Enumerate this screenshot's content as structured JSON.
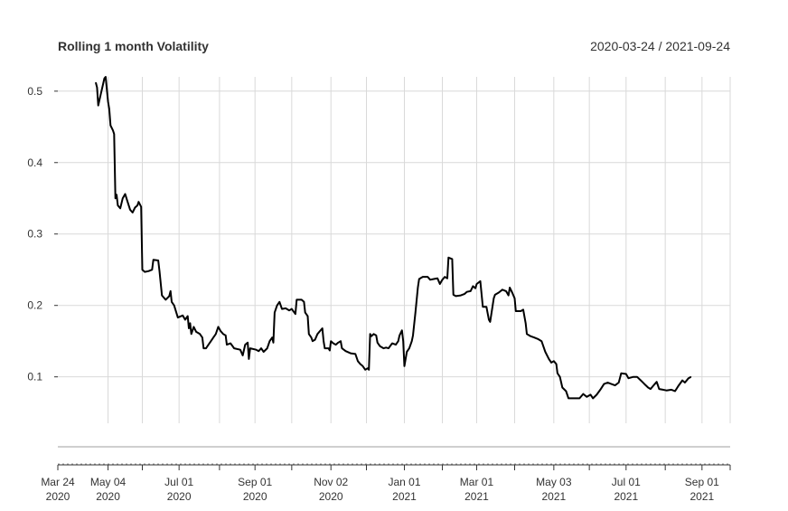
{
  "chart_data": {
    "type": "line",
    "title": "Rolling 1 month Volatility",
    "date_range_label": "2020-03-24 / 2021-09-24",
    "xlabel": "",
    "ylabel": "",
    "ylim": [
      0.035,
      0.52
    ],
    "xlim": [
      "2020-03-24",
      "2021-09-24"
    ],
    "yticks": [
      0.1,
      0.2,
      0.3,
      0.4,
      0.5
    ],
    "ytick_labels": [
      "0.1",
      "0.2",
      "0.3",
      "0.4",
      "0.5"
    ],
    "xticks": [
      {
        "date": "2020-03-24",
        "label1": "Mar 24",
        "label2": "2020"
      },
      {
        "date": "2020-05-04",
        "label1": "May 04",
        "label2": "2020"
      },
      {
        "date": "2020-07-01",
        "label1": "Jul 01",
        "label2": "2020"
      },
      {
        "date": "2020-09-01",
        "label1": "Sep 01",
        "label2": "2020"
      },
      {
        "date": "2020-11-02",
        "label1": "Nov 02",
        "label2": "2020"
      },
      {
        "date": "2021-01-01",
        "label1": "Jan 01",
        "label2": "2021"
      },
      {
        "date": "2021-03-01",
        "label1": "Mar 01",
        "label2": "2021"
      },
      {
        "date": "2021-05-03",
        "label1": "May 03",
        "label2": "2021"
      },
      {
        "date": "2021-07-01",
        "label1": "Jul 01",
        "label2": "2021"
      },
      {
        "date": "2021-09-01",
        "label1": "Sep 01",
        "label2": "2021"
      }
    ],
    "vgrid_dates": [
      "2020-05-04",
      "2020-06-01",
      "2020-07-01",
      "2020-08-03",
      "2020-09-01",
      "2020-10-01",
      "2020-11-02",
      "2020-12-01",
      "2021-01-01",
      "2021-02-01",
      "2021-03-01",
      "2021-04-01",
      "2021-05-03",
      "2021-06-01",
      "2021-07-01",
      "2021-08-02",
      "2021-09-01",
      "2021-09-24"
    ],
    "grid": true,
    "series": [
      {
        "color": "#000000",
        "points": [
          [
            "2020-04-24",
            0.512
          ],
          [
            "2020-04-25",
            0.505
          ],
          [
            "2020-04-26",
            0.48
          ],
          [
            "2020-04-28",
            0.495
          ],
          [
            "2020-04-30",
            0.51
          ],
          [
            "2020-05-01",
            0.518
          ],
          [
            "2020-05-02",
            0.52
          ],
          [
            "2020-05-04",
            0.485
          ],
          [
            "2020-05-05",
            0.475
          ],
          [
            "2020-05-06",
            0.452
          ],
          [
            "2020-05-08",
            0.445
          ],
          [
            "2020-05-09",
            0.44
          ],
          [
            "2020-05-10",
            0.35
          ],
          [
            "2020-05-11",
            0.355
          ],
          [
            "2020-05-12",
            0.34
          ],
          [
            "2020-05-14",
            0.336
          ],
          [
            "2020-05-16",
            0.35
          ],
          [
            "2020-05-18",
            0.356
          ],
          [
            "2020-05-20",
            0.345
          ],
          [
            "2020-05-22",
            0.334
          ],
          [
            "2020-05-24",
            0.33
          ],
          [
            "2020-05-26",
            0.337
          ],
          [
            "2020-05-28",
            0.34
          ],
          [
            "2020-05-29",
            0.345
          ],
          [
            "2020-05-31",
            0.338
          ],
          [
            "2020-06-01",
            0.25
          ],
          [
            "2020-06-03",
            0.247
          ],
          [
            "2020-06-06",
            0.248
          ],
          [
            "2020-06-09",
            0.25
          ],
          [
            "2020-06-10",
            0.264
          ],
          [
            "2020-06-14",
            0.263
          ],
          [
            "2020-06-15",
            0.248
          ],
          [
            "2020-06-17",
            0.214
          ],
          [
            "2020-06-20",
            0.208
          ],
          [
            "2020-06-23",
            0.213
          ],
          [
            "2020-06-24",
            0.22
          ],
          [
            "2020-06-25",
            0.205
          ],
          [
            "2020-06-27",
            0.2
          ],
          [
            "2020-06-30",
            0.183
          ],
          [
            "2020-07-04",
            0.186
          ],
          [
            "2020-07-06",
            0.18
          ],
          [
            "2020-07-08",
            0.185
          ],
          [
            "2020-07-09",
            0.168
          ],
          [
            "2020-07-10",
            0.175
          ],
          [
            "2020-07-11",
            0.16
          ],
          [
            "2020-07-13",
            0.17
          ],
          [
            "2020-07-15",
            0.163
          ],
          [
            "2020-07-18",
            0.16
          ],
          [
            "2020-07-20",
            0.155
          ],
          [
            "2020-07-21",
            0.14
          ],
          [
            "2020-07-23",
            0.14
          ],
          [
            "2020-07-25",
            0.145
          ],
          [
            "2020-07-27",
            0.15
          ],
          [
            "2020-07-29",
            0.155
          ],
          [
            "2020-07-31",
            0.16
          ],
          [
            "2020-08-02",
            0.17
          ],
          [
            "2020-08-04",
            0.164
          ],
          [
            "2020-08-06",
            0.16
          ],
          [
            "2020-08-08",
            0.158
          ],
          [
            "2020-08-09",
            0.145
          ],
          [
            "2020-08-12",
            0.147
          ],
          [
            "2020-08-15",
            0.14
          ],
          [
            "2020-08-20",
            0.138
          ],
          [
            "2020-08-22",
            0.13
          ],
          [
            "2020-08-24",
            0.145
          ],
          [
            "2020-08-26",
            0.148
          ],
          [
            "2020-08-27",
            0.125
          ],
          [
            "2020-08-28",
            0.14
          ],
          [
            "2020-09-02",
            0.138
          ],
          [
            "2020-09-04",
            0.136
          ],
          [
            "2020-09-06",
            0.14
          ],
          [
            "2020-09-08",
            0.135
          ],
          [
            "2020-09-11",
            0.14
          ],
          [
            "2020-09-13",
            0.15
          ],
          [
            "2020-09-15",
            0.155
          ],
          [
            "2020-09-16",
            0.148
          ],
          [
            "2020-09-17",
            0.19
          ],
          [
            "2020-09-19",
            0.2
          ],
          [
            "2020-09-21",
            0.205
          ],
          [
            "2020-09-23",
            0.195
          ],
          [
            "2020-09-26",
            0.196
          ],
          [
            "2020-09-29",
            0.193
          ],
          [
            "2020-10-01",
            0.195
          ],
          [
            "2020-10-04",
            0.188
          ],
          [
            "2020-10-05",
            0.208
          ],
          [
            "2020-10-09",
            0.208
          ],
          [
            "2020-10-11",
            0.205
          ],
          [
            "2020-10-12",
            0.19
          ],
          [
            "2020-10-14",
            0.185
          ],
          [
            "2020-10-15",
            0.16
          ],
          [
            "2020-10-17",
            0.155
          ],
          [
            "2020-10-18",
            0.15
          ],
          [
            "2020-10-20",
            0.152
          ],
          [
            "2020-10-22",
            0.16
          ],
          [
            "2020-10-26",
            0.168
          ],
          [
            "2020-10-27",
            0.15
          ],
          [
            "2020-10-28",
            0.14
          ],
          [
            "2020-10-31",
            0.14
          ],
          [
            "2020-11-01",
            0.137
          ],
          [
            "2020-11-02",
            0.15
          ],
          [
            "2020-11-04",
            0.147
          ],
          [
            "2020-11-06",
            0.145
          ],
          [
            "2020-11-08",
            0.148
          ],
          [
            "2020-11-10",
            0.15
          ],
          [
            "2020-11-11",
            0.14
          ],
          [
            "2020-11-14",
            0.136
          ],
          [
            "2020-11-18",
            0.133
          ],
          [
            "2020-11-22",
            0.132
          ],
          [
            "2020-11-24",
            0.122
          ],
          [
            "2020-11-26",
            0.118
          ],
          [
            "2020-11-28",
            0.115
          ],
          [
            "2020-11-30",
            0.11
          ],
          [
            "2020-12-02",
            0.112
          ],
          [
            "2020-12-03",
            0.11
          ],
          [
            "2020-12-04",
            0.16
          ],
          [
            "2020-12-05",
            0.157
          ],
          [
            "2020-12-07",
            0.16
          ],
          [
            "2020-12-09",
            0.158
          ],
          [
            "2020-12-10",
            0.148
          ],
          [
            "2020-12-12",
            0.143
          ],
          [
            "2020-12-15",
            0.14
          ],
          [
            "2020-12-17",
            0.141
          ],
          [
            "2020-12-19",
            0.14
          ],
          [
            "2020-12-22",
            0.147
          ],
          [
            "2020-12-25",
            0.145
          ],
          [
            "2020-12-27",
            0.15
          ],
          [
            "2020-12-28",
            0.158
          ],
          [
            "2020-12-30",
            0.165
          ],
          [
            "2020-12-31",
            0.15
          ],
          [
            "2021-01-01",
            0.115
          ],
          [
            "2021-01-03",
            0.135
          ],
          [
            "2021-01-05",
            0.14
          ],
          [
            "2021-01-07",
            0.15
          ],
          [
            "2021-01-08",
            0.158
          ],
          [
            "2021-01-10",
            0.19
          ],
          [
            "2021-01-12",
            0.225
          ],
          [
            "2021-01-13",
            0.237
          ],
          [
            "2021-01-16",
            0.24
          ],
          [
            "2021-01-20",
            0.24
          ],
          [
            "2021-01-22",
            0.236
          ],
          [
            "2021-01-25",
            0.237
          ],
          [
            "2021-01-28",
            0.238
          ],
          [
            "2021-01-30",
            0.23
          ],
          [
            "2021-02-01",
            0.236
          ],
          [
            "2021-02-03",
            0.24
          ],
          [
            "2021-02-05",
            0.238
          ],
          [
            "2021-02-06",
            0.267
          ],
          [
            "2021-02-09",
            0.265
          ],
          [
            "2021-02-10",
            0.215
          ],
          [
            "2021-02-12",
            0.213
          ],
          [
            "2021-02-16",
            0.214
          ],
          [
            "2021-02-19",
            0.216
          ],
          [
            "2021-02-21",
            0.219
          ],
          [
            "2021-02-24",
            0.22
          ],
          [
            "2021-02-26",
            0.227
          ],
          [
            "2021-02-28",
            0.224
          ],
          [
            "2021-03-01",
            0.23
          ],
          [
            "2021-03-04",
            0.234
          ],
          [
            "2021-03-06",
            0.198
          ],
          [
            "2021-03-09",
            0.198
          ],
          [
            "2021-03-11",
            0.18
          ],
          [
            "2021-03-12",
            0.177
          ],
          [
            "2021-03-15",
            0.21
          ],
          [
            "2021-03-16",
            0.215
          ],
          [
            "2021-03-19",
            0.218
          ],
          [
            "2021-03-22",
            0.222
          ],
          [
            "2021-03-25",
            0.22
          ],
          [
            "2021-03-27",
            0.214
          ],
          [
            "2021-03-28",
            0.225
          ],
          [
            "2021-03-30",
            0.218
          ],
          [
            "2021-04-01",
            0.21
          ],
          [
            "2021-04-02",
            0.192
          ],
          [
            "2021-04-06",
            0.192
          ],
          [
            "2021-04-08",
            0.194
          ],
          [
            "2021-04-10",
            0.175
          ],
          [
            "2021-04-11",
            0.16
          ],
          [
            "2021-04-14",
            0.157
          ],
          [
            "2021-04-17",
            0.155
          ],
          [
            "2021-04-20",
            0.153
          ],
          [
            "2021-04-23",
            0.15
          ],
          [
            "2021-04-26",
            0.135
          ],
          [
            "2021-04-29",
            0.125
          ],
          [
            "2021-05-01",
            0.12
          ],
          [
            "2021-05-03",
            0.122
          ],
          [
            "2021-05-05",
            0.118
          ],
          [
            "2021-05-06",
            0.105
          ],
          [
            "2021-05-08",
            0.1
          ],
          [
            "2021-05-10",
            0.085
          ],
          [
            "2021-05-13",
            0.08
          ],
          [
            "2021-05-15",
            0.07
          ],
          [
            "2021-05-20",
            0.07
          ],
          [
            "2021-05-24",
            0.07
          ],
          [
            "2021-05-27",
            0.076
          ],
          [
            "2021-05-30",
            0.072
          ],
          [
            "2021-06-02",
            0.075
          ],
          [
            "2021-06-04",
            0.07
          ],
          [
            "2021-06-07",
            0.075
          ],
          [
            "2021-06-10",
            0.082
          ],
          [
            "2021-06-13",
            0.09
          ],
          [
            "2021-06-16",
            0.092
          ],
          [
            "2021-06-19",
            0.09
          ],
          [
            "2021-06-22",
            0.088
          ],
          [
            "2021-06-25",
            0.092
          ],
          [
            "2021-06-27",
            0.105
          ],
          [
            "2021-07-01",
            0.104
          ],
          [
            "2021-07-03",
            0.098
          ],
          [
            "2021-07-07",
            0.1
          ],
          [
            "2021-07-10",
            0.1
          ],
          [
            "2021-07-13",
            0.095
          ],
          [
            "2021-07-16",
            0.09
          ],
          [
            "2021-07-19",
            0.085
          ],
          [
            "2021-07-21",
            0.083
          ],
          [
            "2021-07-23",
            0.087
          ],
          [
            "2021-07-26",
            0.093
          ],
          [
            "2021-07-28",
            0.083
          ],
          [
            "2021-07-31",
            0.082
          ],
          [
            "2021-08-03",
            0.081
          ],
          [
            "2021-08-07",
            0.082
          ],
          [
            "2021-08-10",
            0.08
          ],
          [
            "2021-08-13",
            0.088
          ],
          [
            "2021-08-16",
            0.095
          ],
          [
            "2021-08-18",
            0.092
          ],
          [
            "2021-08-21",
            0.098
          ],
          [
            "2021-08-23",
            0.1
          ]
        ]
      }
    ]
  }
}
